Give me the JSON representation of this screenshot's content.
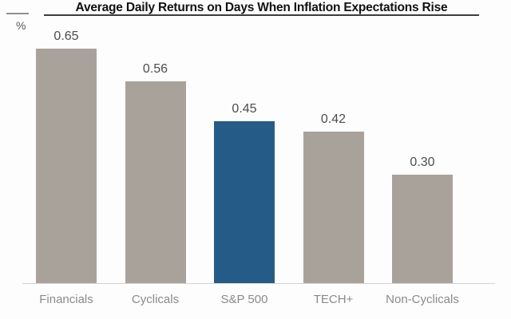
{
  "chart_data": {
    "type": "bar",
    "title": "Average Daily Returns on Days When Inflation Expectations Rise",
    "ylabel": "%",
    "categories": [
      "Financials",
      "Cyclicals",
      "S&P 500",
      "TECH+",
      "Non-Cyclicals"
    ],
    "values": [
      0.65,
      0.56,
      0.45,
      0.42,
      0.3
    ],
    "value_labels": [
      "0.65",
      "0.56",
      "0.45",
      "0.42",
      "0.30"
    ],
    "highlight_category": "S&P 500",
    "highlight_index": 2,
    "ylim": [
      0,
      0.72
    ],
    "grid": false,
    "legend": "none"
  },
  "colors": {
    "bar_default": "#a9a29b",
    "bar_highlight": "#255c87",
    "value_label_text": "#4c4c4c",
    "category_label_text": "#8a8a8a",
    "title_text": "#111111",
    "baseline": "#d4d4d4",
    "title_underline": "#3c3c3c"
  }
}
